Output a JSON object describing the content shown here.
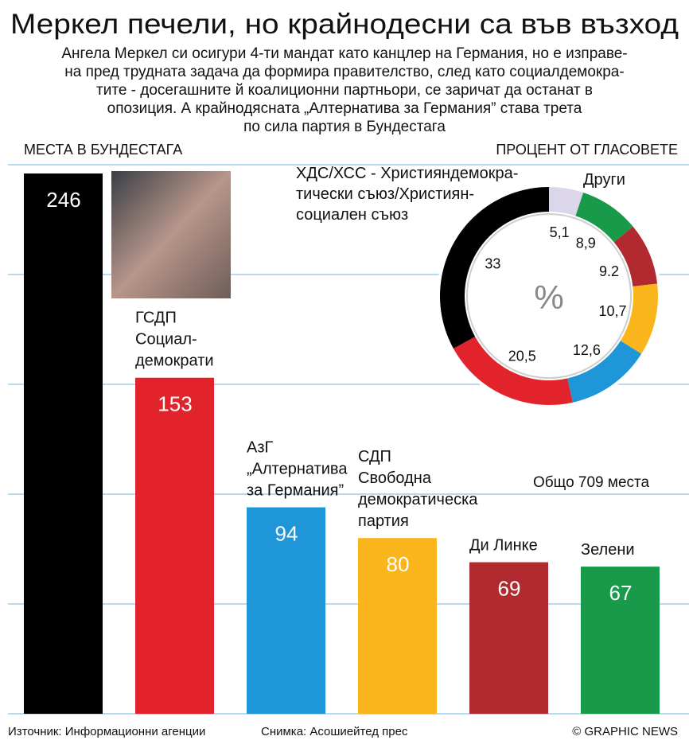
{
  "header": {
    "title": "Меркел печели, но крайнодесни са във възход",
    "subtitle": [
      "Ангела Меркел си осигури 4-ти мандат като канцлер на Германия, но е изправе-",
      "на пред трудната задача да формира правителство, след като социалдемокра-",
      "тите - досегашните й коалиционни партньори, се заричат да останат в",
      "опозиция. А крайнодясната „Алтернатива за Германия” става трета",
      "по сила партия в Бундестага"
    ]
  },
  "chart_data": [
    {
      "type": "bar",
      "title": "МЕСТА В БУНДЕСТАГА",
      "categories": [
        null,
        "ГСДП\nСоциал-\nдемократи",
        "АзГ\n„Алтернатива\nза Германия”",
        "СДП\nСвободна\nдемократическа\nпартия",
        "Ди Линке",
        "Зелени"
      ],
      "values": [
        246,
        153,
        94,
        80,
        69,
        67
      ],
      "colors": [
        "#000000",
        "#e3232c",
        "#1f96d8",
        "#f9b51b",
        "#b02a30",
        "#19994a"
      ],
      "ylim": [
        0,
        250
      ],
      "yticks": [
        0,
        50,
        100,
        150,
        200,
        250
      ],
      "grid": true,
      "note": "Общо 709 места"
    },
    {
      "type": "pie",
      "title": "ПРОЦЕНТ ОТ ГЛАСОВЕТЕ",
      "categories": [
        "Други",
        null,
        null,
        null,
        null,
        null,
        "ХДС/ХСС - Християндемокра-\nтически съюз/Християн-\nсоциален съюз"
      ],
      "values": [
        5.1,
        8.9,
        9.2,
        10.7,
        12.6,
        20.5,
        33
      ],
      "value_labels": [
        "5,1",
        "8,9",
        "9.2",
        "10,7",
        "12,6",
        "20,5",
        "33"
      ],
      "colors": [
        "#dcd6ea",
        "#19994a",
        "#b02a30",
        "#f9b51b",
        "#1f96d8",
        "#e3232c",
        "#000000"
      ],
      "center_label": "%"
    }
  ],
  "footer": {
    "source": "Източник: Информационни агенции",
    "photo_credit": "Снимка: Асошиейтед прес",
    "copyright": "© GRAPHIC NEWS"
  }
}
